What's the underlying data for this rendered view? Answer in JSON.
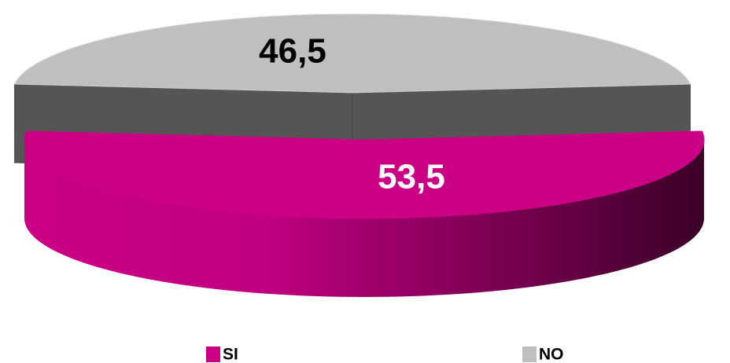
{
  "chart_data": {
    "type": "pie",
    "categories": [
      "SI",
      "NO"
    ],
    "values": [
      53.5,
      46.5
    ],
    "value_labels": [
      "53,5",
      "46,5"
    ],
    "colors": [
      "#cc0085",
      "#bfbfbf"
    ],
    "legend": "bottom"
  }
}
